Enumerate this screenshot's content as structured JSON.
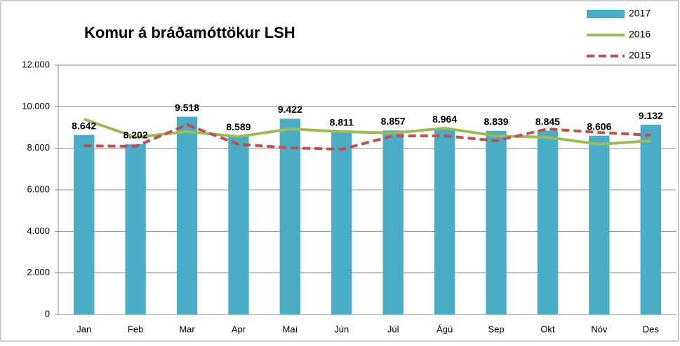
{
  "chart_data": {
    "type": "bar_line",
    "title": "Komur á bráðamóttökur LSH",
    "categories": [
      "Jan",
      "Feb",
      "Mar",
      "Apr",
      "Maí",
      "Jún",
      "Júl",
      "Ágú",
      "Sep",
      "Okt",
      "Nóv",
      "Des"
    ],
    "series": [
      {
        "name": "2017",
        "type": "bar",
        "color": "#4bacc6",
        "values": [
          8642,
          8202,
          9518,
          8589,
          9422,
          8811,
          8857,
          8964,
          8839,
          8845,
          8606,
          9132
        ],
        "value_labels": [
          "8.642",
          "8.202",
          "9.518",
          "8.589",
          "9.422",
          "8.811",
          "8.857",
          "8.964",
          "8.839",
          "8.845",
          "8.606",
          "9.132"
        ]
      },
      {
        "name": "2016",
        "type": "line",
        "color": "#9bbb59",
        "values": [
          9400,
          8530,
          8800,
          8560,
          8930,
          8800,
          8730,
          8965,
          8595,
          8530,
          8190,
          8360
        ]
      },
      {
        "name": "2015",
        "type": "dashed",
        "color": "#c0504d",
        "values": [
          8120,
          8090,
          9130,
          8190,
          8020,
          7950,
          8595,
          8595,
          8360,
          8930,
          8760,
          8630
        ]
      }
    ],
    "ylim": [
      0,
      12000
    ],
    "yticks": [
      0,
      {
        "value": 2000,
        "label": "2.000"
      },
      {
        "value": 4000,
        "label": "4.000"
      },
      {
        "value": 6000,
        "label": "6.000"
      },
      {
        "value": 8000,
        "label": "8.000"
      },
      {
        "value": 10000,
        "label": "10.000"
      },
      {
        "value": 12000,
        "label": "12.000"
      }
    ],
    "grid": true,
    "legend": "top-right"
  }
}
